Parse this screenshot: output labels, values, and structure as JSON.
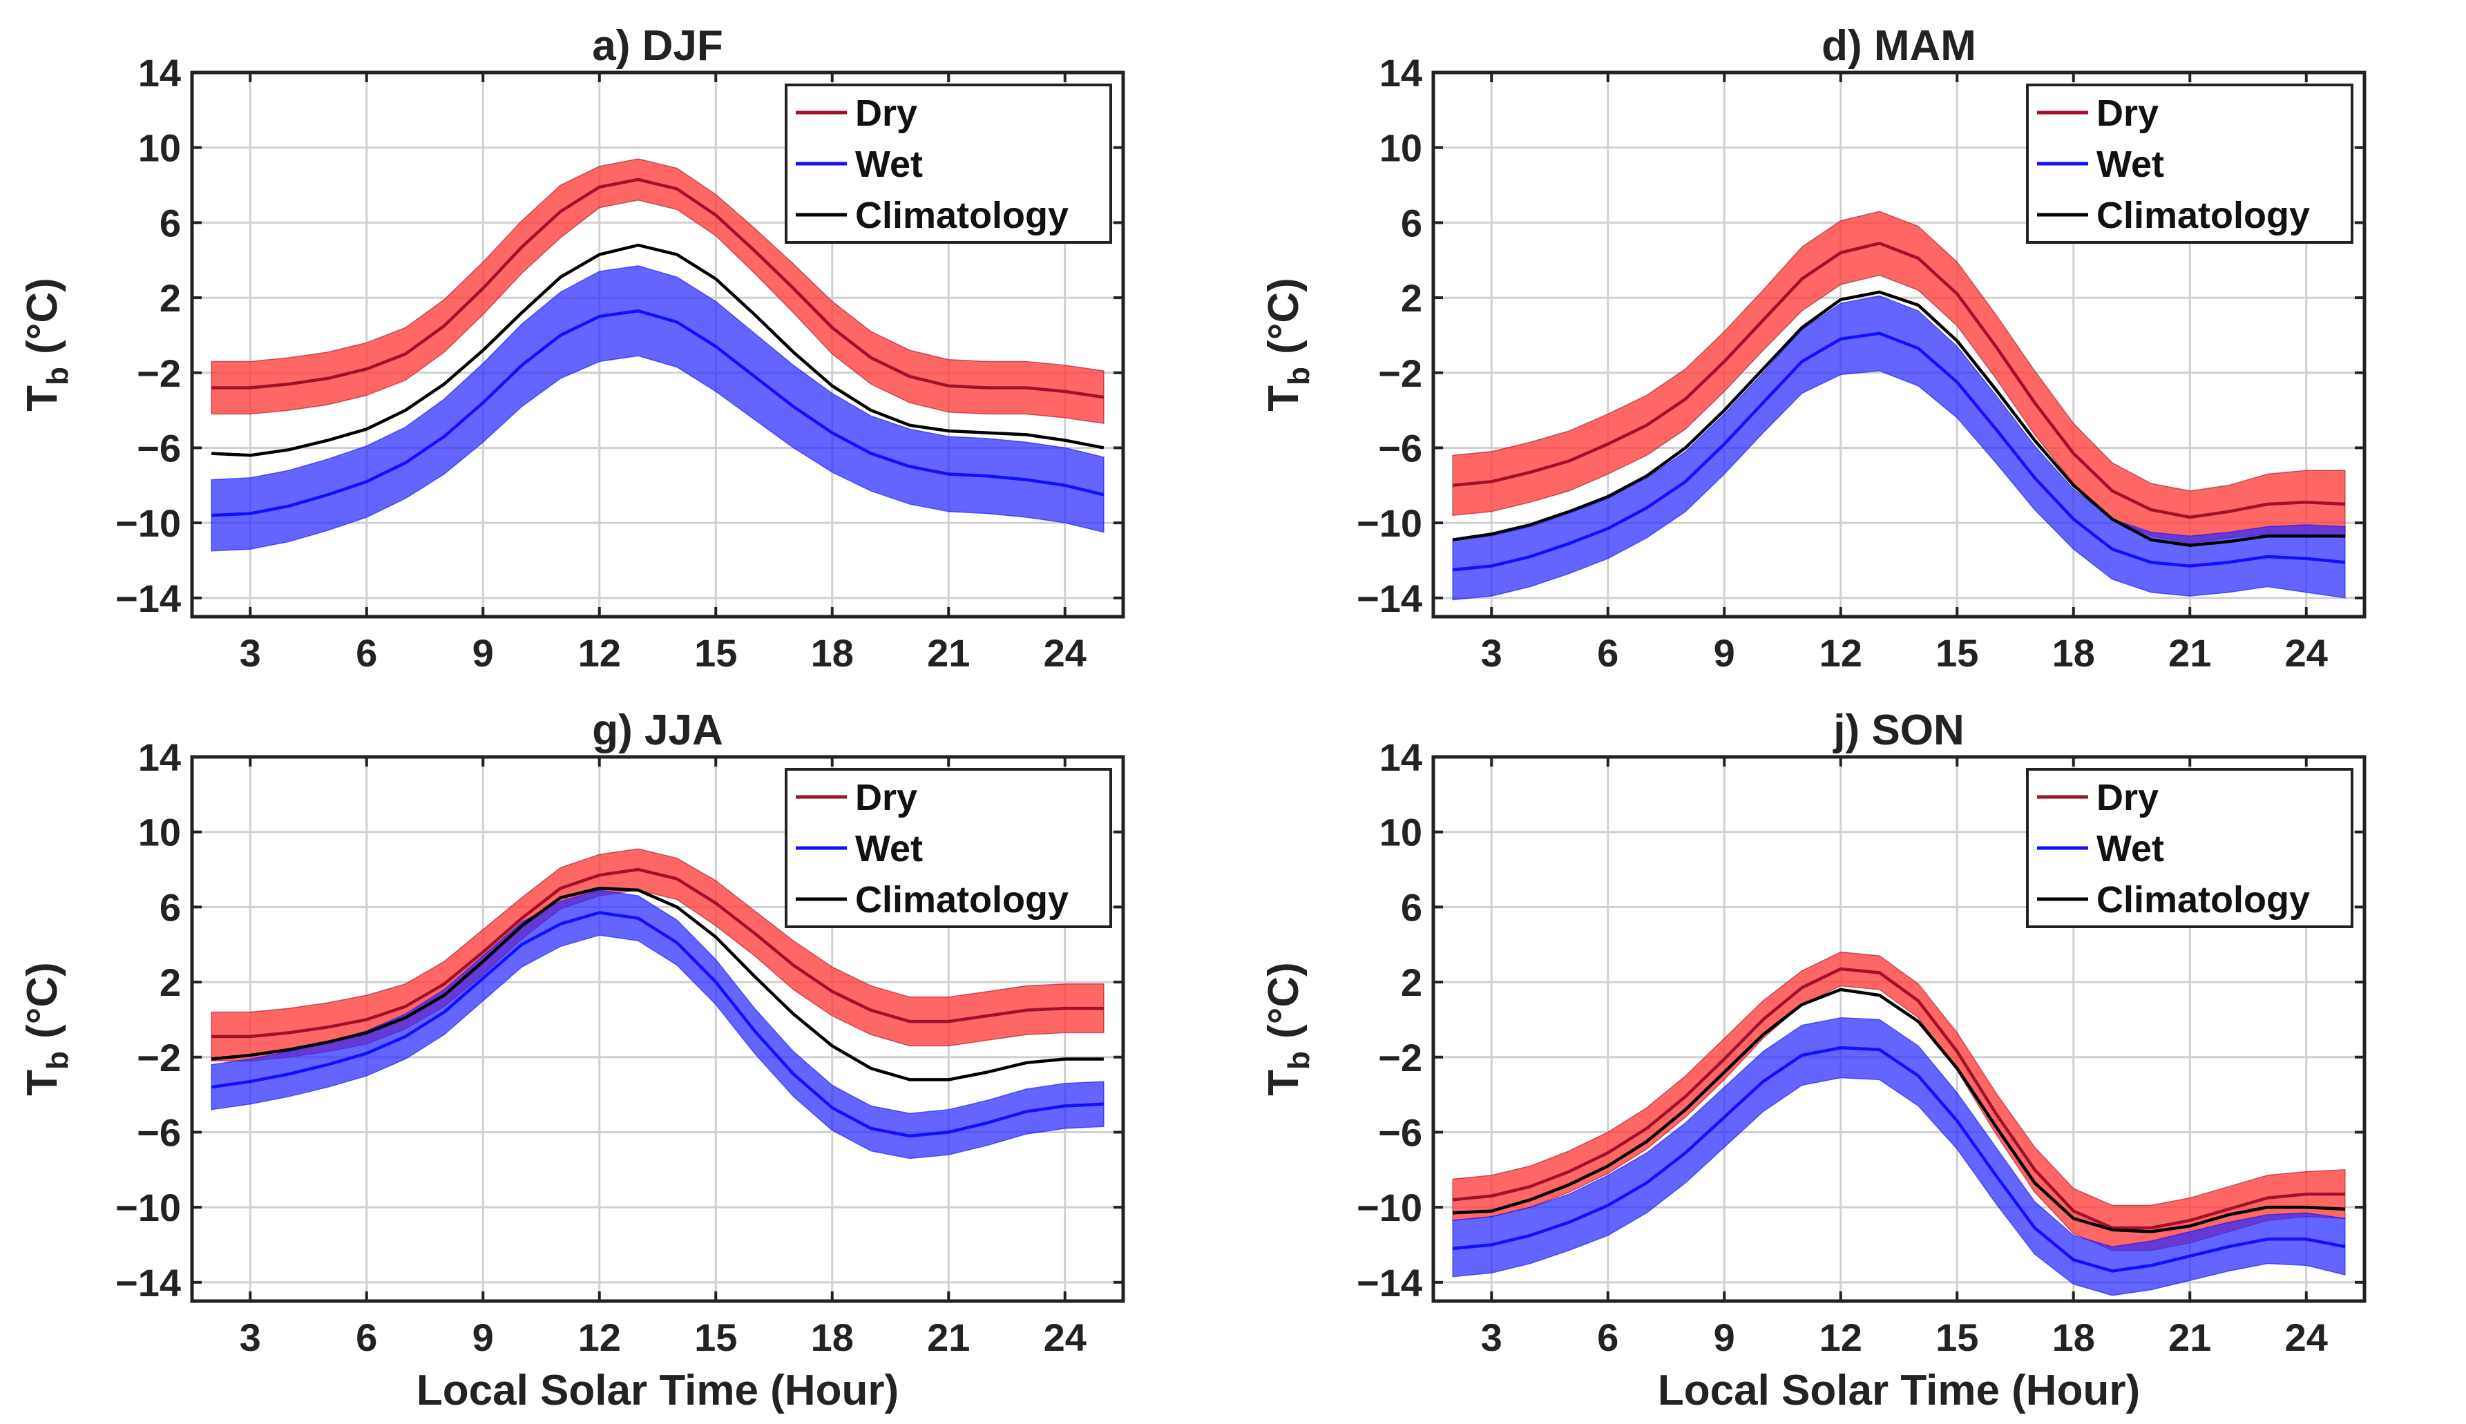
{
  "figure": {
    "xlabel": "Local Solar Time (Hour)",
    "ylabel_main": "T",
    "ylabel_sub": "b",
    "ylabel_unit": "(°C)"
  },
  "colors": {
    "dry_line": "#a0102a",
    "dry_band": "#ff3b3b",
    "wet_line": "#1010ff",
    "wet_band": "#2828ff",
    "climatology": "#000000",
    "grid": "#d0d0d0",
    "axis": "#222222"
  },
  "chart_data": [
    {
      "type": "line",
      "title": "a) DJF",
      "x": [
        2,
        3,
        4,
        5,
        6,
        7,
        8,
        9,
        10,
        11,
        12,
        13,
        14,
        15,
        16,
        17,
        18,
        19,
        20,
        21,
        22,
        23,
        24,
        25
      ],
      "xticks": [
        3,
        6,
        9,
        12,
        15,
        18,
        21,
        24
      ],
      "yticks": [
        -14,
        -10,
        -6,
        -2,
        2,
        6,
        10,
        14
      ],
      "xlim": [
        1.5,
        25.5
      ],
      "ylim": [
        -15,
        14
      ],
      "grid": true,
      "legend_position": "top-right",
      "series": [
        {
          "name": "Dry",
          "values": [
            -2.8,
            -2.8,
            -2.6,
            -2.3,
            -1.8,
            -1.0,
            0.5,
            2.5,
            4.7,
            6.6,
            7.9,
            8.3,
            7.8,
            6.4,
            4.5,
            2.5,
            0.4,
            -1.2,
            -2.2,
            -2.7,
            -2.8,
            -2.8,
            -3.0,
            -3.3
          ],
          "band": [
            1.4,
            1.4,
            1.4,
            1.4,
            1.4,
            1.4,
            1.4,
            1.4,
            1.4,
            1.4,
            1.1,
            1.1,
            1.1,
            1.1,
            1.2,
            1.3,
            1.4,
            1.4,
            1.4,
            1.4,
            1.4,
            1.4,
            1.4,
            1.4
          ]
        },
        {
          "name": "Wet",
          "values": [
            -9.6,
            -9.5,
            -9.1,
            -8.5,
            -7.8,
            -6.8,
            -5.4,
            -3.6,
            -1.6,
            0.0,
            1.0,
            1.3,
            0.7,
            -0.6,
            -2.2,
            -3.8,
            -5.2,
            -6.3,
            -7.0,
            -7.4,
            -7.5,
            -7.7,
            -8.0,
            -8.5
          ],
          "band": [
            1.9,
            1.9,
            1.9,
            1.9,
            1.9,
            1.9,
            2.0,
            2.1,
            2.2,
            2.3,
            2.4,
            2.4,
            2.4,
            2.4,
            2.3,
            2.2,
            2.1,
            2.0,
            2.0,
            2.0,
            2.0,
            2.0,
            2.0,
            2.0
          ]
        },
        {
          "name": "Climatology",
          "values": [
            -6.3,
            -6.4,
            -6.1,
            -5.6,
            -5.0,
            -4.0,
            -2.6,
            -0.8,
            1.2,
            3.1,
            4.3,
            4.8,
            4.3,
            3.0,
            1.1,
            -0.9,
            -2.7,
            -4.0,
            -4.8,
            -5.1,
            -5.2,
            -5.3,
            -5.6,
            -6.0
          ]
        }
      ]
    },
    {
      "type": "line",
      "title": "d) MAM",
      "x": [
        2,
        3,
        4,
        5,
        6,
        7,
        8,
        9,
        10,
        11,
        12,
        13,
        14,
        15,
        16,
        17,
        18,
        19,
        20,
        21,
        22,
        23,
        24,
        25
      ],
      "xticks": [
        3,
        6,
        9,
        12,
        15,
        18,
        21,
        24
      ],
      "yticks": [
        -14,
        -10,
        -6,
        -2,
        2,
        6,
        10,
        14
      ],
      "xlim": [
        1.5,
        25.5
      ],
      "ylim": [
        -15,
        14
      ],
      "grid": true,
      "legend_position": "top-right",
      "series": [
        {
          "name": "Dry",
          "values": [
            -8.0,
            -7.8,
            -7.3,
            -6.7,
            -5.8,
            -4.8,
            -3.4,
            -1.4,
            0.8,
            3.0,
            4.4,
            4.9,
            4.1,
            2.2,
            -0.6,
            -3.6,
            -6.3,
            -8.3,
            -9.3,
            -9.7,
            -9.4,
            -9.0,
            -8.9,
            -9.0
          ],
          "band": [
            1.6,
            1.6,
            1.6,
            1.6,
            1.6,
            1.6,
            1.6,
            1.6,
            1.6,
            1.7,
            1.7,
            1.7,
            1.7,
            1.7,
            1.7,
            1.7,
            1.6,
            1.5,
            1.4,
            1.4,
            1.4,
            1.6,
            1.7,
            1.8
          ]
        },
        {
          "name": "Wet",
          "values": [
            -12.5,
            -12.3,
            -11.8,
            -11.1,
            -10.3,
            -9.2,
            -7.8,
            -5.8,
            -3.6,
            -1.4,
            -0.2,
            0.1,
            -0.7,
            -2.5,
            -5.0,
            -7.6,
            -9.8,
            -11.4,
            -12.1,
            -12.3,
            -12.1,
            -11.8,
            -11.9,
            -12.1
          ],
          "band": [
            1.6,
            1.6,
            1.6,
            1.6,
            1.6,
            1.6,
            1.6,
            1.6,
            1.6,
            1.7,
            1.9,
            2.0,
            2.0,
            1.9,
            1.8,
            1.7,
            1.6,
            1.6,
            1.6,
            1.6,
            1.6,
            1.6,
            1.8,
            1.9
          ]
        },
        {
          "name": "Climatology",
          "values": [
            -10.9,
            -10.6,
            -10.1,
            -9.4,
            -8.6,
            -7.5,
            -6.0,
            -4.0,
            -1.8,
            0.4,
            1.9,
            2.3,
            1.6,
            -0.3,
            -2.9,
            -5.6,
            -8.0,
            -9.8,
            -10.9,
            -11.2,
            -11.0,
            -10.7,
            -10.7,
            -10.7
          ]
        }
      ]
    },
    {
      "type": "line",
      "title": "g) JJA",
      "x": [
        2,
        3,
        4,
        5,
        6,
        7,
        8,
        9,
        10,
        11,
        12,
        13,
        14,
        15,
        16,
        17,
        18,
        19,
        20,
        21,
        22,
        23,
        24,
        25
      ],
      "xticks": [
        3,
        6,
        9,
        12,
        15,
        18,
        21,
        24
      ],
      "yticks": [
        -14,
        -10,
        -6,
        -2,
        2,
        6,
        10,
        14
      ],
      "xlim": [
        1.5,
        25.5
      ],
      "ylim": [
        -15,
        14
      ],
      "grid": true,
      "legend_position": "top-right",
      "series": [
        {
          "name": "Dry",
          "values": [
            -0.9,
            -0.9,
            -0.7,
            -0.4,
            0.0,
            0.7,
            1.9,
            3.6,
            5.4,
            7.0,
            7.7,
            8.0,
            7.5,
            6.2,
            4.6,
            2.9,
            1.5,
            0.5,
            -0.1,
            -0.1,
            0.2,
            0.5,
            0.6,
            0.6
          ],
          "band": [
            1.3,
            1.3,
            1.3,
            1.3,
            1.3,
            1.2,
            1.2,
            1.2,
            1.1,
            1.1,
            1.1,
            1.1,
            1.1,
            1.2,
            1.2,
            1.3,
            1.3,
            1.3,
            1.3,
            1.3,
            1.3,
            1.3,
            1.3,
            1.3
          ]
        },
        {
          "name": "Wet",
          "values": [
            -3.6,
            -3.3,
            -2.9,
            -2.4,
            -1.8,
            -0.9,
            0.4,
            2.2,
            4.0,
            5.1,
            5.7,
            5.4,
            4.1,
            2.0,
            -0.6,
            -2.9,
            -4.7,
            -5.8,
            -6.2,
            -6.0,
            -5.5,
            -4.9,
            -4.6,
            -4.5
          ],
          "band": [
            1.2,
            1.2,
            1.2,
            1.2,
            1.2,
            1.2,
            1.2,
            1.2,
            1.2,
            1.2,
            1.2,
            1.2,
            1.2,
            1.2,
            1.2,
            1.2,
            1.2,
            1.2,
            1.2,
            1.2,
            1.2,
            1.2,
            1.2,
            1.2
          ]
        },
        {
          "name": "Climatology",
          "values": [
            -2.1,
            -1.9,
            -1.6,
            -1.2,
            -0.7,
            0.1,
            1.3,
            3.1,
            5.0,
            6.5,
            7.0,
            6.9,
            6.0,
            4.4,
            2.3,
            0.3,
            -1.4,
            -2.6,
            -3.2,
            -3.2,
            -2.8,
            -2.3,
            -2.1,
            -2.1
          ]
        }
      ]
    },
    {
      "type": "line",
      "title": "j) SON",
      "x": [
        2,
        3,
        4,
        5,
        6,
        7,
        8,
        9,
        10,
        11,
        12,
        13,
        14,
        15,
        16,
        17,
        18,
        19,
        20,
        21,
        22,
        23,
        24,
        25
      ],
      "xticks": [
        3,
        6,
        9,
        12,
        15,
        18,
        21,
        24
      ],
      "yticks": [
        -14,
        -10,
        -6,
        -2,
        2,
        6,
        10,
        14
      ],
      "xlim": [
        1.5,
        25.5
      ],
      "ylim": [
        -15,
        14
      ],
      "grid": true,
      "legend_position": "top-right",
      "series": [
        {
          "name": "Dry",
          "values": [
            -9.6,
            -9.4,
            -8.9,
            -8.1,
            -7.1,
            -5.8,
            -4.1,
            -2.1,
            0.0,
            1.7,
            2.7,
            2.5,
            1.0,
            -1.7,
            -5.0,
            -8.0,
            -10.2,
            -11.1,
            -11.1,
            -10.7,
            -10.1,
            -9.5,
            -9.3,
            -9.3
          ],
          "band": [
            1.1,
            1.1,
            1.1,
            1.1,
            1.1,
            1.1,
            1.1,
            1.1,
            1.0,
            0.9,
            0.9,
            0.9,
            0.9,
            1.0,
            1.1,
            1.2,
            1.2,
            1.2,
            1.2,
            1.2,
            1.2,
            1.2,
            1.2,
            1.3
          ]
        },
        {
          "name": "Wet",
          "values": [
            -12.2,
            -12.0,
            -11.5,
            -10.8,
            -9.9,
            -8.7,
            -7.1,
            -5.2,
            -3.3,
            -1.9,
            -1.5,
            -1.6,
            -3.0,
            -5.4,
            -8.3,
            -11.1,
            -12.8,
            -13.4,
            -13.1,
            -12.6,
            -12.1,
            -11.7,
            -11.7,
            -12.1
          ],
          "band": [
            1.5,
            1.5,
            1.5,
            1.5,
            1.6,
            1.6,
            1.6,
            1.6,
            1.6,
            1.6,
            1.6,
            1.6,
            1.6,
            1.5,
            1.5,
            1.4,
            1.3,
            1.3,
            1.3,
            1.3,
            1.3,
            1.3,
            1.4,
            1.5
          ]
        },
        {
          "name": "Climatology",
          "values": [
            -10.3,
            -10.2,
            -9.6,
            -8.8,
            -7.8,
            -6.5,
            -4.8,
            -2.8,
            -0.8,
            0.8,
            1.6,
            1.3,
            -0.1,
            -2.6,
            -5.7,
            -8.7,
            -10.6,
            -11.2,
            -11.3,
            -11.0,
            -10.4,
            -10.0,
            -10.0,
            -10.1
          ]
        }
      ]
    }
  ]
}
